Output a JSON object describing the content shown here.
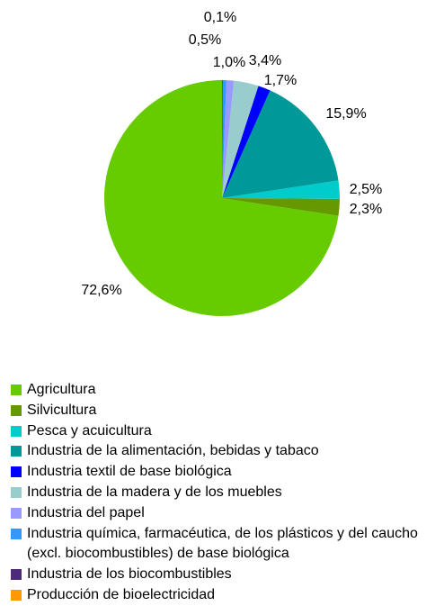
{
  "chart_data": {
    "type": "pie",
    "categories": [
      "Agricultura",
      "Silvicultura",
      "Pesca y acuicultura",
      "Industria de la alimentación, bebidas y tabaco",
      "Industria textil de base biológica",
      "Industria de la madera y de los muebles",
      "Industria del papel",
      "Industria química, farmacéutica, de los plásticos y del caucho (excl. biocombustibles) de base biológica",
      "Industria de los biocombustibles",
      "Producción de bioelectricidad"
    ],
    "values": [
      72.6,
      2.3,
      2.5,
      15.9,
      1.7,
      3.4,
      1.0,
      0.5,
      0.1,
      0
    ],
    "value_labels": [
      "72,6%",
      "2,3%",
      "2,5%",
      "15,9%",
      "1,7%",
      "3,4%",
      "1,0%",
      "0,5%",
      "0,1%",
      null
    ],
    "colors": [
      "#66cc00",
      "#669900",
      "#00cccc",
      "#009999",
      "#0000ff",
      "#99cccc",
      "#9999ff",
      "#3399ff",
      "#4d2a7a",
      "#ff9900"
    ]
  }
}
